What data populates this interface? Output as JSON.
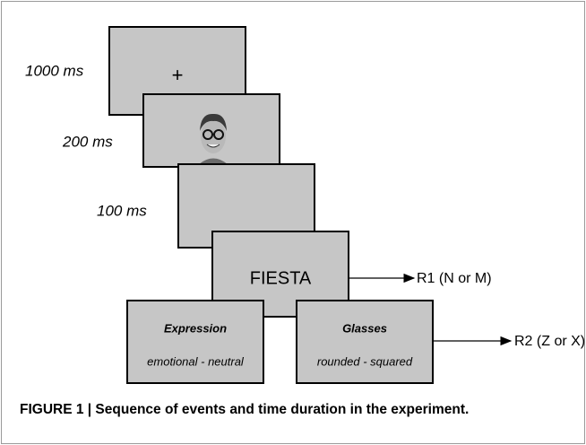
{
  "durations": [
    "1000 ms",
    "200 ms",
    "100 ms"
  ],
  "fixation": "+",
  "word": "FIESTA",
  "tasks": [
    {
      "title": "Expression",
      "options": "emotional - neutral"
    },
    {
      "title": "Glasses",
      "options": "rounded - squared"
    }
  ],
  "responses": [
    "R1 (N or M)",
    "R2 (Z or X)"
  ],
  "caption": "FIGURE 1 | Sequence of events and time duration in the experiment."
}
